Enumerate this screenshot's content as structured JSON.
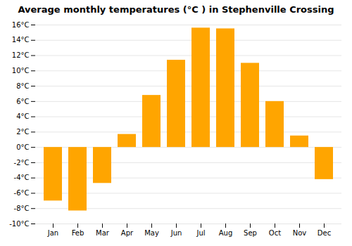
{
  "chart_data": {
    "type": "bar",
    "title": "Average monthly temperatures (°C ) in Stephenville Crossing",
    "categories": [
      "Jan",
      "Feb",
      "Mar",
      "Apr",
      "May",
      "Jun",
      "Jul",
      "Aug",
      "Sep",
      "Oct",
      "Nov",
      "Dec"
    ],
    "values": [
      -7.0,
      -8.3,
      -4.7,
      1.7,
      6.8,
      11.4,
      15.6,
      15.5,
      11.0,
      6.0,
      1.5,
      -4.2
    ],
    "color": "#FFA500",
    "ylim": [
      -10,
      16
    ],
    "yticks": [
      {
        "value": -10,
        "label": "-10°C"
      },
      {
        "value": -8,
        "label": "-8°C"
      },
      {
        "value": -6,
        "label": "-6°C"
      },
      {
        "value": -4,
        "label": "-4°C"
      },
      {
        "value": -2,
        "label": "-2°C"
      },
      {
        "value": 0,
        "label": "0°C"
      },
      {
        "value": 2,
        "label": "2°C"
      },
      {
        "value": 4,
        "label": "4°C"
      },
      {
        "value": 6,
        "label": "6°C"
      },
      {
        "value": 8,
        "label": "8°C"
      },
      {
        "value": 10,
        "label": "10°C"
      },
      {
        "value": 12,
        "label": "12°C"
      },
      {
        "value": 14,
        "label": "14°C"
      },
      {
        "value": 16,
        "label": "16°C"
      }
    ],
    "grid": true
  }
}
